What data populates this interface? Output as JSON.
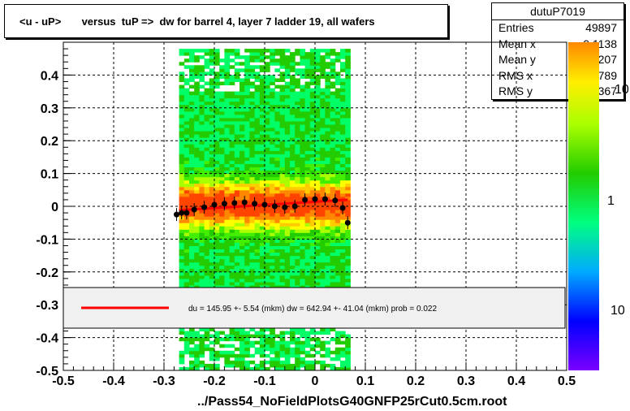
{
  "title": "<u - uP>       versus  tuP =>  dw for barrel 4, layer 7 ladder 19, all wafers",
  "footer": "../Pass54_NoFieldPlotsG40GNFP25rCut0.5cm.root",
  "stats": {
    "name": "dutuP7019",
    "rows": [
      {
        "label": "Entries",
        "value": "49897"
      },
      {
        "label": "Mean x",
        "value": "-0.1138"
      },
      {
        "label": "Mean y",
        "value": "0.007207"
      },
      {
        "label": "RMS x",
        "value": "0.08789"
      },
      {
        "label": "RMS y",
        "value": "0.1367"
      }
    ]
  },
  "legend": {
    "text": "du =  145.95 +-  5.54 (mkm) dw =  642.94 +- 41.04 (mkm) prob = 0.022",
    "line_color": "#ff0000"
  },
  "palette_labels": [
    "10",
    "1",
    "10"
  ],
  "chart_data": {
    "type": "heatmap",
    "xlim": [
      -0.5,
      0.5
    ],
    "ylim": [
      -0.5,
      0.5
    ],
    "x_ticks": [
      "-0.5",
      "-0.4",
      "-0.3",
      "-0.2",
      "-0.1",
      "0",
      "0.1",
      "0.2",
      "0.3",
      "0.4",
      "0.5"
    ],
    "y_ticks": [
      "-0.5",
      "-0.4",
      "-0.3",
      "-0.2",
      "-0.1",
      "0",
      "0.1",
      "0.2",
      "0.3",
      "0.4"
    ],
    "grid": true,
    "occupied_x_range": [
      -0.27,
      0.065
    ],
    "profile_points": {
      "x": [
        -0.275,
        -0.265,
        -0.255,
        -0.24,
        -0.22,
        -0.2,
        -0.18,
        -0.16,
        -0.14,
        -0.12,
        -0.1,
        -0.08,
        -0.06,
        -0.04,
        -0.02,
        0.0,
        0.02,
        0.04,
        0.055,
        0.065
      ],
      "y": [
        -0.025,
        -0.02,
        -0.02,
        -0.01,
        -0.003,
        0.005,
        0.008,
        0.01,
        0.012,
        0.008,
        0.005,
        0.0,
        -0.003,
        0.0,
        0.02,
        0.022,
        0.022,
        0.018,
        -0.005,
        -0.05
      ]
    },
    "fit_line": {
      "x": [
        -0.27,
        0.065
      ],
      "y": [
        -0.012,
        0.02
      ]
    }
  }
}
